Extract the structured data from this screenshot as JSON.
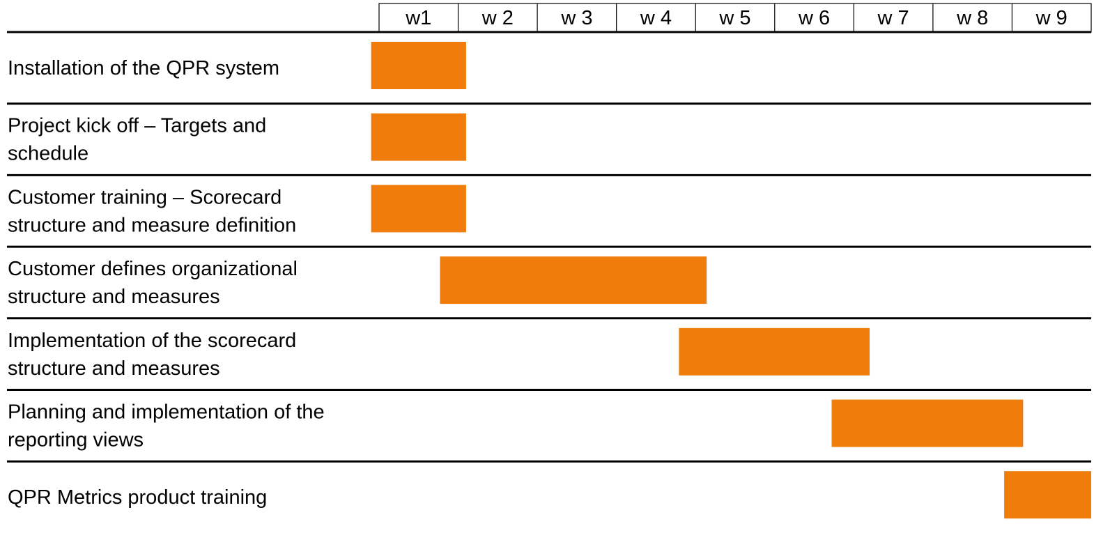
{
  "chart_data": {
    "type": "gantt",
    "categories": [
      "w1",
      "w 2",
      "w 3",
      "w 4",
      "w 5",
      "w 6",
      "w 7",
      "w 8",
      "w 9"
    ],
    "xlim": [
      0,
      9
    ],
    "color": "#f07c0c",
    "tasks": [
      {
        "label": [
          "Installation of the QPR system"
        ],
        "start": -0.1,
        "end": 1.1
      },
      {
        "label": [
          "Project kick off – Targets and",
          "schedule"
        ],
        "start": -0.1,
        "end": 1.1
      },
      {
        "label": [
          "Customer training – Scorecard",
          "structure and measure definition"
        ],
        "start": -0.1,
        "end": 1.1
      },
      {
        "label": [
          "Customer defines organizational",
          "structure and measures"
        ],
        "start": 0.77,
        "end": 4.14
      },
      {
        "label": [
          "Implementation of the scorecard",
          "structure and measures"
        ],
        "start": 3.79,
        "end": 6.2
      },
      {
        "label": [
          "Planning and implementation of the",
          "reporting views"
        ],
        "start": 5.72,
        "end": 8.14
      },
      {
        "label": [
          "QPR Metrics product training"
        ],
        "start": 7.9,
        "end": 9.0
      }
    ]
  }
}
